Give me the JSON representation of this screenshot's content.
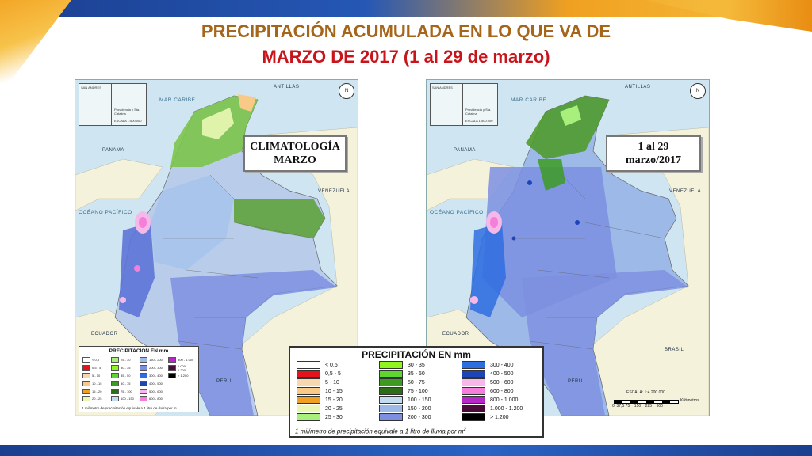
{
  "title": {
    "line1": "PRECIPITACIÓN ACUMULADA EN LO QUE VA DE",
    "line2": "MARZO DE 2017 (1 al 29 de marzo)"
  },
  "colors": {
    "title_line1": "#a5651a",
    "title_line2": "#c8151b",
    "sea": "#cfe6f2",
    "neighbor_land": "#f5f2dc"
  },
  "map_labels": {
    "inset_a": "SAN ANDRÉS",
    "inset_b": "Providencia y Sta. Catalina",
    "inset_scale": "ESCALA 1:500.000",
    "caribbean": "MAR CARIBE",
    "pacific": "OCÉANO PACÍFICO",
    "antillas": "ANTILLAS",
    "panama": "PANAMA",
    "venezuela": "VENEZUELA",
    "ecuador": "ECUADOR",
    "peru": "PERÚ",
    "brasil": "BRASIL"
  },
  "left_map": {
    "box_line1": "CLIMATOLOGÍA",
    "box_line2": "MARZO"
  },
  "right_map": {
    "box_line1": "1 al 29",
    "box_line2": "marzo/2017",
    "scale_label": "ESCALA: 1:4.200.000",
    "scale_ticks": "0  37,5 75    150    225    300",
    "scale_unit": "Kilómetros"
  },
  "legend": {
    "title": "PRECIPITACIÓN EN mm",
    "footnote": "1 milímetro de precipitación equivale a 1 litro de lluvia por m",
    "items": [
      {
        "label": "< 0,5",
        "color": "#ffffff"
      },
      {
        "label": "0,5 - 5",
        "color": "#e3121b"
      },
      {
        "label": "5 - 10",
        "color": "#f7d6b0"
      },
      {
        "label": "10 - 15",
        "color": "#f8c987"
      },
      {
        "label": "15 - 20",
        "color": "#f0a020"
      },
      {
        "label": "20 - 25",
        "color": "#e9f7b3"
      },
      {
        "label": "25 - 30",
        "color": "#a8ef7c"
      },
      {
        "label": "30 - 35",
        "color": "#8ff51f"
      },
      {
        "label": "35 - 50",
        "color": "#5ed630"
      },
      {
        "label": "50 - 75",
        "color": "#3d9b22"
      },
      {
        "label": "75 - 100",
        "color": "#2d6d1a"
      },
      {
        "label": "100 - 150",
        "color": "#c4dcf0"
      },
      {
        "label": "150 - 200",
        "color": "#9db9e8"
      },
      {
        "label": "200 - 300",
        "color": "#7d8fe0"
      },
      {
        "label": "300 - 400",
        "color": "#2f6ee0"
      },
      {
        "label": "400 - 500",
        "color": "#1d45b8"
      },
      {
        "label": "500 - 600",
        "color": "#f5b8e8"
      },
      {
        "label": "600 - 800",
        "color": "#f47fd9"
      },
      {
        "label": "800 - 1.000",
        "color": "#b726c9"
      },
      {
        "label": "1.000 - 1.200",
        "color": "#4a0a3a"
      },
      {
        "label": "> 1.200",
        "color": "#000000"
      }
    ]
  }
}
